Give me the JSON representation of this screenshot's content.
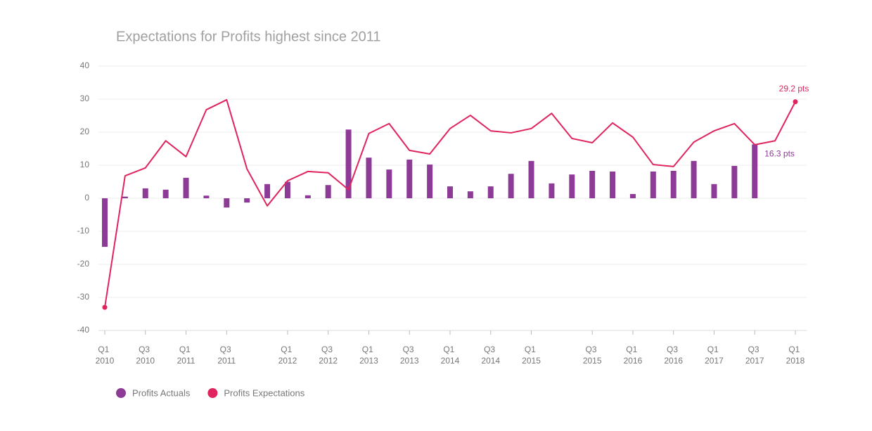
{
  "chart_data": {
    "type": "bar_line",
    "title": "Expectations for Profits highest since 2011",
    "categories": [
      "Q1 2010",
      null,
      "Q3 2010",
      null,
      "Q1 2011",
      null,
      "Q3 2011",
      null,
      null,
      "Q1 2012",
      null,
      "Q3 2012",
      null,
      "Q1 2013",
      null,
      "Q3 2013",
      null,
      "Q1 2014",
      null,
      "Q3 2014",
      null,
      "Q1 2015",
      null,
      null,
      "Q3 2015",
      null,
      "Q1 2016",
      null,
      "Q3 2016",
      null,
      "Q1 2017",
      null,
      "Q3 2017",
      null,
      "Q1 2018"
    ],
    "series": [
      {
        "name": "Profits Actuals",
        "type": "bar",
        "color": "#8e3b97",
        "values": [
          -14.7,
          0.5,
          3.0,
          2.6,
          6.2,
          0.8,
          -2.8,
          -1.3,
          4.3,
          5.0,
          0.9,
          4.0,
          20.8,
          12.3,
          8.7,
          11.7,
          10.2,
          3.6,
          2.1,
          3.6,
          7.4,
          11.3,
          4.5,
          7.2,
          8.3,
          8.1,
          1.3,
          8.1,
          8.3,
          11.3,
          4.3,
          9.8,
          16.3,
          null,
          null
        ],
        "value_labels": [
          null,
          null,
          null,
          null,
          null,
          null,
          null,
          null,
          null,
          null,
          null,
          null,
          null,
          null,
          null,
          null,
          null,
          null,
          null,
          null,
          null,
          null,
          null,
          null,
          null,
          null,
          null,
          null,
          null,
          null,
          null,
          null,
          "16.3 pts",
          null,
          null
        ]
      },
      {
        "name": "Profits Expectations",
        "type": "line",
        "color": "#e0245e",
        "values": [
          -33,
          6.8,
          9.2,
          17.4,
          12.6,
          26.8,
          29.8,
          8.9,
          -2.3,
          5.3,
          8.1,
          7.7,
          2.6,
          19.6,
          22.6,
          14.5,
          13.4,
          21.1,
          25.1,
          20.4,
          19.8,
          21.1,
          25.7,
          18.1,
          16.8,
          22.8,
          18.5,
          10.2,
          9.6,
          17.0,
          20.4,
          22.6,
          16.2,
          17.4,
          29.2
        ],
        "value_labels": [
          null,
          null,
          null,
          null,
          null,
          null,
          null,
          null,
          null,
          null,
          null,
          null,
          null,
          null,
          null,
          null,
          null,
          null,
          null,
          null,
          null,
          null,
          null,
          null,
          null,
          null,
          null,
          null,
          null,
          null,
          null,
          null,
          null,
          null,
          "29.2 pts"
        ]
      }
    ],
    "ylim": [
      -40,
      40
    ],
    "yticks": [
      -40,
      -30,
      -20,
      -10,
      0,
      10,
      20,
      30,
      40
    ],
    "grid": true,
    "legend": "bottom-left"
  }
}
